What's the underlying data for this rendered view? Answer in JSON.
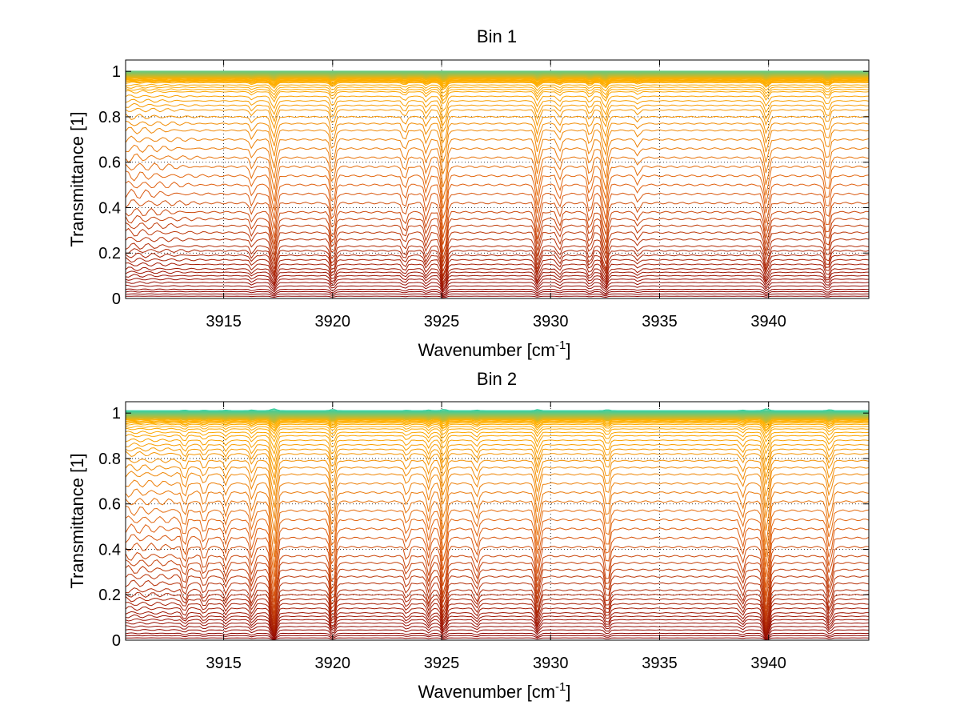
{
  "chart_data": [
    {
      "type": "line",
      "title": "Bin 1",
      "xlabel": "Wavenumber [cm",
      "xlabel_superscript": "-1",
      "xlabel_suffix": "]",
      "ylabel": "Transmittance [1]",
      "xlim": [
        3910.5,
        3944.6
      ],
      "ylim": [
        0,
        1.05
      ],
      "xticks": [
        "3915",
        "3920",
        "3925",
        "3930",
        "3935",
        "3940"
      ],
      "yticks": [
        "0",
        "0.2",
        "0.4",
        "0.6",
        "0.8",
        "1"
      ],
      "grid": true,
      "line_count": 60,
      "levels": [
        0.0,
        0.01,
        0.02,
        0.03,
        0.04,
        0.055,
        0.07,
        0.085,
        0.1,
        0.115,
        0.13,
        0.15,
        0.17,
        0.19,
        0.21,
        0.23,
        0.26,
        0.29,
        0.32,
        0.35,
        0.38,
        0.42,
        0.46,
        0.5,
        0.54,
        0.58,
        0.62,
        0.66,
        0.7,
        0.74,
        0.77,
        0.8,
        0.83,
        0.85,
        0.87,
        0.89,
        0.91,
        0.92,
        0.93,
        0.94,
        0.95,
        0.955,
        0.96,
        0.965,
        0.97,
        0.972,
        0.974,
        0.976,
        0.978,
        0.98,
        0.982,
        0.984,
        0.986,
        0.988,
        0.99,
        0.992,
        0.994,
        0.996,
        0.998,
        1.0
      ],
      "absorption_lines": [
        {
          "center": 3916.3,
          "depth": 0.04,
          "width": 0.12
        },
        {
          "center": 3917.3,
          "depth": 0.12,
          "width": 0.15
        },
        {
          "center": 3920.0,
          "depth": 0.1,
          "width": 0.14
        },
        {
          "center": 3923.3,
          "depth": 0.05,
          "width": 0.12
        },
        {
          "center": 3924.3,
          "depth": 0.06,
          "width": 0.12
        },
        {
          "center": 3925.1,
          "depth": 0.16,
          "width": 0.15
        },
        {
          "center": 3929.4,
          "depth": 0.1,
          "width": 0.13
        },
        {
          "center": 3930.4,
          "depth": 0.05,
          "width": 0.12
        },
        {
          "center": 3931.8,
          "depth": 0.07,
          "width": 0.12
        },
        {
          "center": 3932.5,
          "depth": 0.12,
          "width": 0.14
        },
        {
          "center": 3934.0,
          "depth": 0.03,
          "width": 0.12
        },
        {
          "center": 3939.9,
          "depth": 0.1,
          "width": 0.14
        },
        {
          "center": 3942.7,
          "depth": 0.09,
          "width": 0.14
        }
      ],
      "colors": {
        "low": "#8b0000",
        "mid": "#e06010",
        "high": "#ffb000",
        "top": "#3ccfa0"
      }
    },
    {
      "type": "line",
      "title": "Bin 2",
      "xlabel": "Wavenumber [cm",
      "xlabel_superscript": "-1",
      "xlabel_suffix": "]",
      "ylabel": "Transmittance [1]",
      "xlim": [
        3910.5,
        3944.6
      ],
      "ylim": [
        0,
        1.05
      ],
      "xticks": [
        "3915",
        "3920",
        "3925",
        "3930",
        "3935",
        "3940"
      ],
      "yticks": [
        "0",
        "0.2",
        "0.4",
        "0.6",
        "0.8",
        "1"
      ],
      "grid": true,
      "line_count": 60,
      "levels": [
        0.0,
        0.01,
        0.02,
        0.03,
        0.045,
        0.06,
        0.075,
        0.09,
        0.105,
        0.12,
        0.14,
        0.16,
        0.18,
        0.2,
        0.22,
        0.25,
        0.28,
        0.31,
        0.34,
        0.37,
        0.41,
        0.45,
        0.49,
        0.53,
        0.57,
        0.61,
        0.65,
        0.69,
        0.73,
        0.76,
        0.79,
        0.82,
        0.84,
        0.86,
        0.88,
        0.9,
        0.915,
        0.93,
        0.94,
        0.95,
        0.957,
        0.964,
        0.97,
        0.975,
        0.978,
        0.98,
        0.982,
        0.984,
        0.986,
        0.988,
        0.99,
        0.992,
        0.994,
        0.996,
        0.998,
        1.0,
        1.002,
        1.004,
        1.006,
        1.01
      ],
      "absorption_lines": [
        {
          "center": 3913.2,
          "depth": 0.06,
          "width": 0.12
        },
        {
          "center": 3914.1,
          "depth": 0.05,
          "width": 0.12
        },
        {
          "center": 3915.1,
          "depth": 0.05,
          "width": 0.12
        },
        {
          "center": 3916.3,
          "depth": 0.07,
          "width": 0.13
        },
        {
          "center": 3917.3,
          "depth": 0.2,
          "width": 0.16
        },
        {
          "center": 3920.0,
          "depth": 0.14,
          "width": 0.14
        },
        {
          "center": 3923.4,
          "depth": 0.05,
          "width": 0.12
        },
        {
          "center": 3924.4,
          "depth": 0.07,
          "width": 0.12
        },
        {
          "center": 3925.1,
          "depth": 0.15,
          "width": 0.14
        },
        {
          "center": 3926.6,
          "depth": 0.06,
          "width": 0.13
        },
        {
          "center": 3929.4,
          "depth": 0.12,
          "width": 0.13
        },
        {
          "center": 3932.6,
          "depth": 0.1,
          "width": 0.14
        },
        {
          "center": 3938.8,
          "depth": 0.06,
          "width": 0.12
        },
        {
          "center": 3939.9,
          "depth": 0.2,
          "width": 0.16
        },
        {
          "center": 3942.8,
          "depth": 0.1,
          "width": 0.14
        }
      ],
      "colors": {
        "low": "#8b0000",
        "mid": "#e06010",
        "high": "#ffb000",
        "top": "#3ccfa0"
      }
    }
  ]
}
